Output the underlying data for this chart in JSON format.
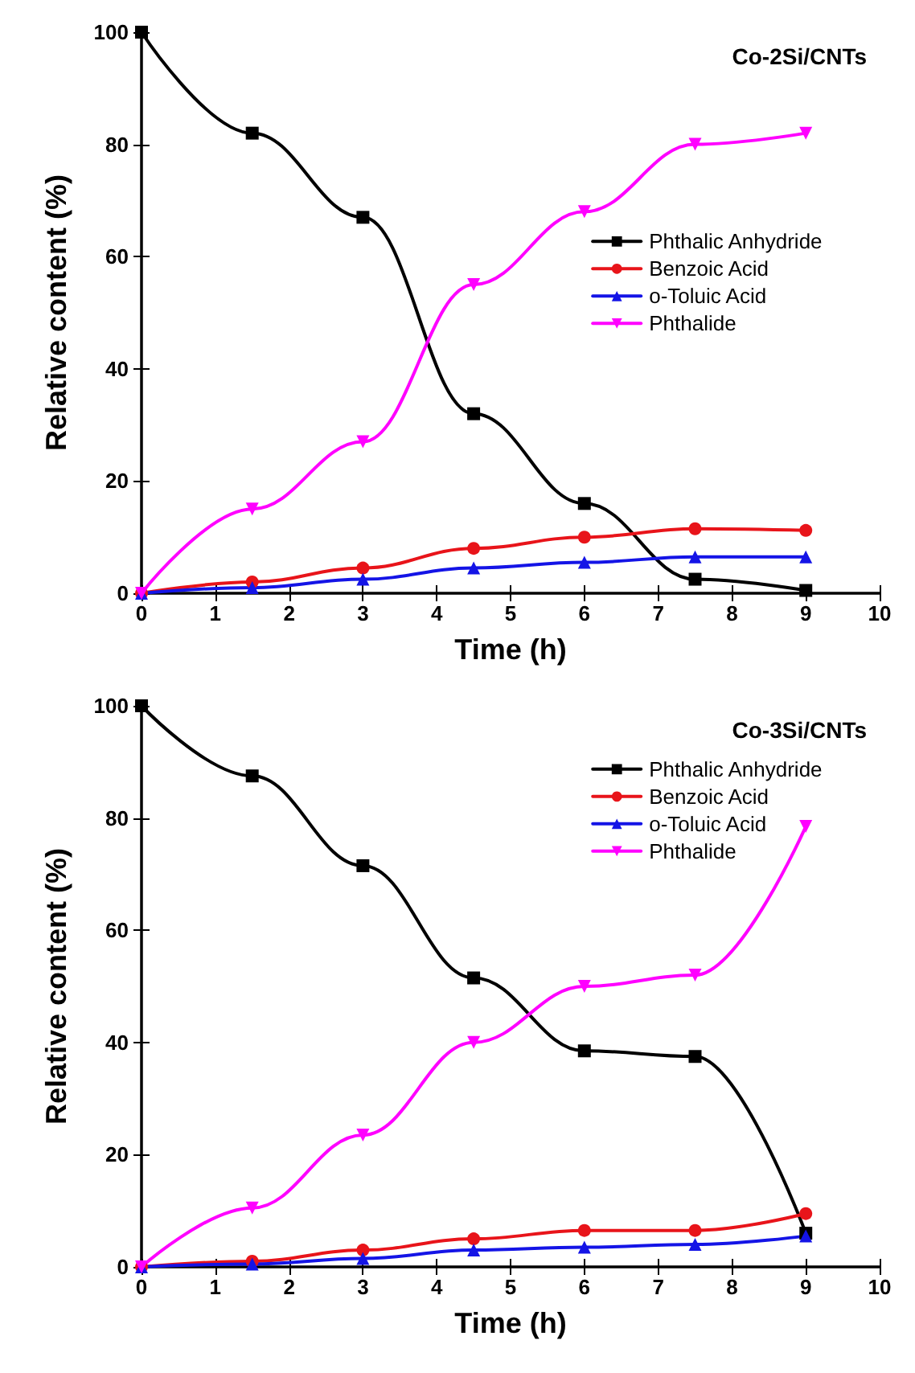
{
  "chart_data": [
    {
      "type": "line",
      "xlabel": "Time (h)",
      "ylabel": "Relative content (%)",
      "annotations": [
        "Co-2Si/CNTs"
      ],
      "x": [
        0,
        1.5,
        3,
        4.5,
        6,
        7.5,
        9
      ],
      "xlim": [
        0,
        10
      ],
      "xticks": [
        0,
        1,
        2,
        3,
        4,
        5,
        6,
        7,
        8,
        9,
        10
      ],
      "ylim": [
        0,
        100
      ],
      "yticks": [
        0,
        20,
        40,
        60,
        80,
        100
      ],
      "grid": false,
      "legend": "right",
      "series": [
        {
          "name": "Phthalic Anhydride",
          "color": "#000000",
          "marker": "square",
          "values": [
            100,
            82,
            67,
            32,
            16,
            2.5,
            0.5
          ]
        },
        {
          "name": "Benzoic Acid",
          "color": "#e8141a",
          "marker": "circle",
          "values": [
            0,
            2,
            4.5,
            8,
            10,
            11.5,
            11.2
          ]
        },
        {
          "name": "o-Toluic Acid",
          "color": "#1414e6",
          "marker": "triangle",
          "values": [
            0,
            1,
            2.5,
            4.5,
            5.5,
            6.5,
            6.5
          ]
        },
        {
          "name": "Phthalide",
          "color": "#ff00ff",
          "marker": "triangle_down",
          "values": [
            0,
            15,
            27,
            55,
            68,
            80,
            82
          ]
        }
      ]
    },
    {
      "type": "line",
      "xlabel": "Time (h)",
      "ylabel": "Relative content (%)",
      "annotations": [
        "Co-3Si/CNTs"
      ],
      "x": [
        0,
        1.5,
        3,
        4.5,
        6,
        7.5,
        9
      ],
      "xlim": [
        0,
        10
      ],
      "xticks": [
        0,
        1,
        2,
        3,
        4,
        5,
        6,
        7,
        8,
        9,
        10
      ],
      "ylim": [
        0,
        100
      ],
      "yticks": [
        0,
        20,
        40,
        60,
        80,
        100
      ],
      "grid": false,
      "legend": "top right",
      "series": [
        {
          "name": "Phthalic Anhydride",
          "color": "#000000",
          "marker": "square",
          "values": [
            100,
            87.5,
            71.5,
            51.5,
            38.5,
            37.5,
            6
          ]
        },
        {
          "name": "Benzoic Acid",
          "color": "#e8141a",
          "marker": "circle",
          "values": [
            0,
            1,
            3,
            5,
            6.5,
            6.5,
            9.5
          ]
        },
        {
          "name": "o-Toluic Acid",
          "color": "#1414e6",
          "marker": "triangle",
          "values": [
            0,
            0.5,
            1.5,
            3,
            3.5,
            4,
            5.5
          ]
        },
        {
          "name": "Phthalide",
          "color": "#ff00ff",
          "marker": "triangle_down",
          "values": [
            0,
            10.5,
            23.5,
            40,
            50,
            52,
            78.5
          ]
        }
      ]
    }
  ]
}
